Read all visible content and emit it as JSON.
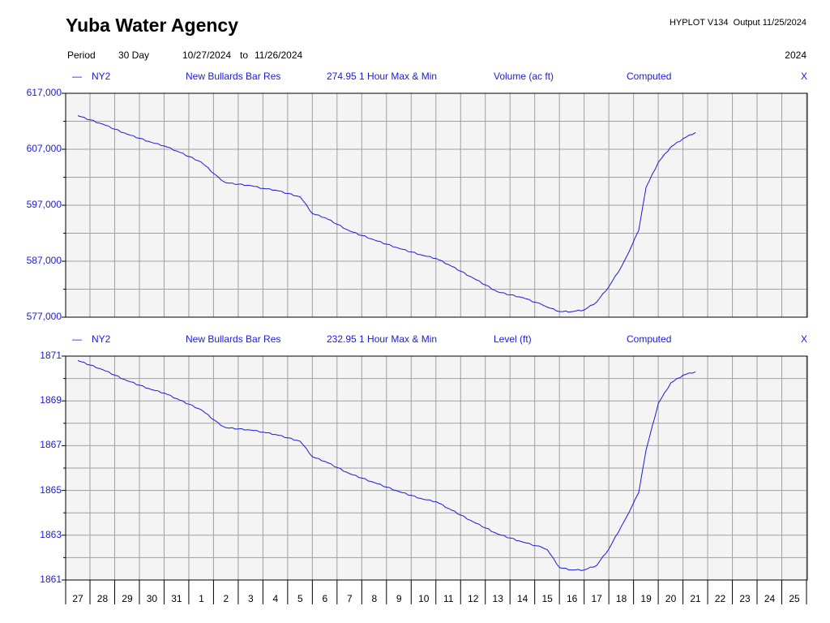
{
  "header": {
    "title": "Yuba Water Agency",
    "program": "HYPLOT V134",
    "output_label": "Output 11/25/2024",
    "period_label": "Period",
    "period_value": "30 Day",
    "start_date": "10/27/2024",
    "to_label": "to",
    "end_date": "11/26/2024",
    "year": "2024"
  },
  "colors": {
    "series": "#1a1adb",
    "plot_bg": "#f4f4f4",
    "grid": "#a0a0a0",
    "frame": "#000000"
  },
  "chart_data": [
    {
      "type": "line",
      "station": "NY2",
      "name": "New Bullards Bar Res",
      "sensor": "274.95 1 Hour Max & Min",
      "ylabel": "Volume (ac ft)",
      "status": "Computed",
      "flag": "X",
      "ylim": [
        577000,
        617000
      ],
      "ytick_values": [
        617000,
        607000,
        597000,
        587000,
        577000
      ],
      "ytick_labels": [
        "617,000",
        "607,000",
        "597,000",
        "587,000",
        "577,000"
      ],
      "grid": true,
      "x": [
        0,
        1,
        2,
        3,
        3.5,
        4,
        5,
        5.8,
        6,
        7,
        7.5,
        8,
        9,
        9.5,
        10,
        11,
        12,
        13,
        14,
        14.5,
        15,
        16,
        17,
        18,
        18.8,
        19,
        19.5,
        20,
        20.5,
        21,
        21.5,
        22,
        22.3,
        22.7,
        23,
        23.5,
        24,
        24.5,
        25
      ],
      "values": [
        613000,
        611500,
        609700,
        608200,
        607600,
        606700,
        604700,
        601500,
        601000,
        600500,
        600000,
        599700,
        598500,
        595500,
        594800,
        592400,
        590800,
        589300,
        588000,
        587500,
        586400,
        584000,
        581500,
        580500,
        579200,
        578800,
        578000,
        578000,
        578300,
        579700,
        582500,
        586000,
        588600,
        592500,
        600200,
        604700,
        607400,
        608900,
        610000
      ]
    },
    {
      "type": "line",
      "station": "NY2",
      "name": "New Bullards Bar Res",
      "sensor": "232.95 1 Hour Max & Min",
      "ylabel": "Level (ft)",
      "status": "Computed",
      "flag": "X",
      "ylim": [
        1861,
        1871
      ],
      "ytick_values": [
        1871,
        1869,
        1867,
        1865,
        1863,
        1861
      ],
      "ytick_labels": [
        "1871",
        "1869",
        "1867",
        "1865",
        "1863",
        "1861"
      ],
      "grid": true,
      "x": [
        0,
        1,
        2,
        3,
        3.5,
        4,
        5,
        5.8,
        6,
        7,
        7.5,
        8,
        9,
        9.5,
        10,
        11,
        12,
        13,
        14,
        14.5,
        15,
        16,
        17,
        18,
        18.8,
        19,
        19.5,
        20,
        20.5,
        21,
        21.5,
        22,
        22.3,
        22.7,
        23,
        23.5,
        24,
        24.5,
        25
      ],
      "values": [
        1870.8,
        1870.4,
        1869.9,
        1869.5,
        1869.35,
        1869.1,
        1868.6,
        1867.9,
        1867.8,
        1867.7,
        1867.6,
        1867.5,
        1867.2,
        1866.5,
        1866.3,
        1865.75,
        1865.35,
        1864.95,
        1864.6,
        1864.5,
        1864.2,
        1863.6,
        1863.05,
        1862.7,
        1862.45,
        1862.35,
        1861.55,
        1861.45,
        1861.45,
        1861.65,
        1862.4,
        1863.4,
        1864.0,
        1864.9,
        1866.8,
        1868.9,
        1869.8,
        1870.15,
        1870.3
      ]
    }
  ],
  "x_axis": {
    "ticks": [
      "27",
      "28",
      "29",
      "30",
      "31",
      "1",
      "2",
      "3",
      "4",
      "5",
      "6",
      "7",
      "8",
      "9",
      "10",
      "11",
      "12",
      "13",
      "14",
      "15",
      "16",
      "17",
      "18",
      "19",
      "20",
      "21",
      "22",
      "23",
      "24",
      "25"
    ]
  }
}
